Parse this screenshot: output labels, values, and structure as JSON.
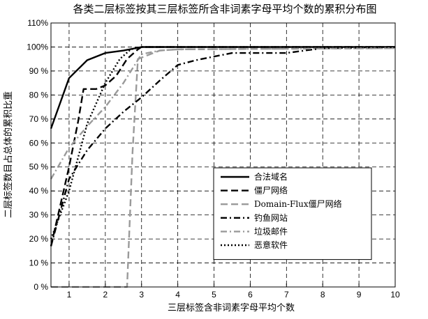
{
  "chart_data": {
    "type": "line",
    "title": "各类二层标签按其三层标签所含非词素字母平均个数的累积分布图",
    "xlabel": "三层标签含非词素字母平均个数",
    "ylabel": "二层标签数目占总体的累积比重",
    "xlim": [
      0.5,
      10
    ],
    "ylim": [
      0,
      110
    ],
    "x_ticks": [
      1,
      2,
      3,
      4,
      5,
      6,
      7,
      8,
      9,
      10
    ],
    "x_tick_labels": [
      "1",
      "2",
      "3",
      "4",
      "5",
      "6",
      "7",
      "8",
      "9",
      "10"
    ],
    "y_ticks": [
      0,
      10,
      20,
      30,
      40,
      50,
      60,
      70,
      80,
      90,
      100,
      110
    ],
    "y_tick_labels": [
      "0 %",
      "10 %",
      "20 %",
      "30 %",
      "40 %",
      "50 %",
      "60 %",
      "70 %",
      "80 %",
      "90 %",
      "100%",
      "110%"
    ],
    "grid": true,
    "legend_position": "center-right",
    "series": [
      {
        "name": "合法域名",
        "style": "solid",
        "color": "#000000",
        "points": [
          [
            0.5,
            66
          ],
          [
            1,
            87
          ],
          [
            1.5,
            94.5
          ],
          [
            2,
            97.5
          ],
          [
            2.5,
            98.5
          ],
          [
            3,
            100
          ],
          [
            10,
            100
          ]
        ]
      },
      {
        "name": "僵尸网络",
        "style": "dashed",
        "color": "#000000",
        "points": [
          [
            0.5,
            17
          ],
          [
            1,
            50
          ],
          [
            1.25,
            69
          ],
          [
            1.4,
            82.5
          ],
          [
            1.75,
            82.5
          ],
          [
            2,
            84
          ],
          [
            2.3,
            88
          ],
          [
            2.6,
            95
          ],
          [
            2.9,
            99
          ],
          [
            3,
            100
          ],
          [
            10,
            100
          ]
        ]
      },
      {
        "name": "Domain-Flux僵尸网络",
        "style": "dashed",
        "color": "#9a9a9a",
        "points": [
          [
            0.5,
            0
          ],
          [
            2.6,
            0
          ],
          [
            2.75,
            56
          ],
          [
            2.9,
            95
          ],
          [
            3.5,
            98.5
          ],
          [
            4,
            99
          ],
          [
            10,
            99.5
          ]
        ]
      },
      {
        "name": "钓鱼网站",
        "style": "dashdot",
        "color": "#000000",
        "points": [
          [
            0.5,
            17
          ],
          [
            1,
            45
          ],
          [
            1.5,
            57
          ],
          [
            2,
            66
          ],
          [
            2.5,
            73
          ],
          [
            3,
            79
          ],
          [
            3.5,
            86
          ],
          [
            4,
            92.5
          ],
          [
            4.5,
            94.5
          ],
          [
            5,
            96
          ],
          [
            5.5,
            97.5
          ],
          [
            6,
            97.5
          ],
          [
            7,
            97.5
          ],
          [
            7.5,
            98.5
          ],
          [
            8,
            99.5
          ],
          [
            10,
            100
          ]
        ]
      },
      {
        "name": "垃圾邮件",
        "style": "dashdot",
        "color": "#9a9a9a",
        "points": [
          [
            0.5,
            45
          ],
          [
            1,
            58
          ],
          [
            1.5,
            67
          ],
          [
            2,
            75
          ],
          [
            2.5,
            85
          ],
          [
            3,
            97
          ],
          [
            3.5,
            98.5
          ],
          [
            4,
            99
          ],
          [
            10,
            99.5
          ]
        ]
      },
      {
        "name": "恶意软件",
        "style": "dotted",
        "color": "#000000",
        "points": [
          [
            0.5,
            20
          ],
          [
            1,
            40
          ],
          [
            1.5,
            68
          ],
          [
            2,
            85
          ],
          [
            2.4,
            95
          ],
          [
            2.7,
            99
          ],
          [
            3,
            100
          ],
          [
            10,
            100
          ]
        ]
      }
    ]
  }
}
